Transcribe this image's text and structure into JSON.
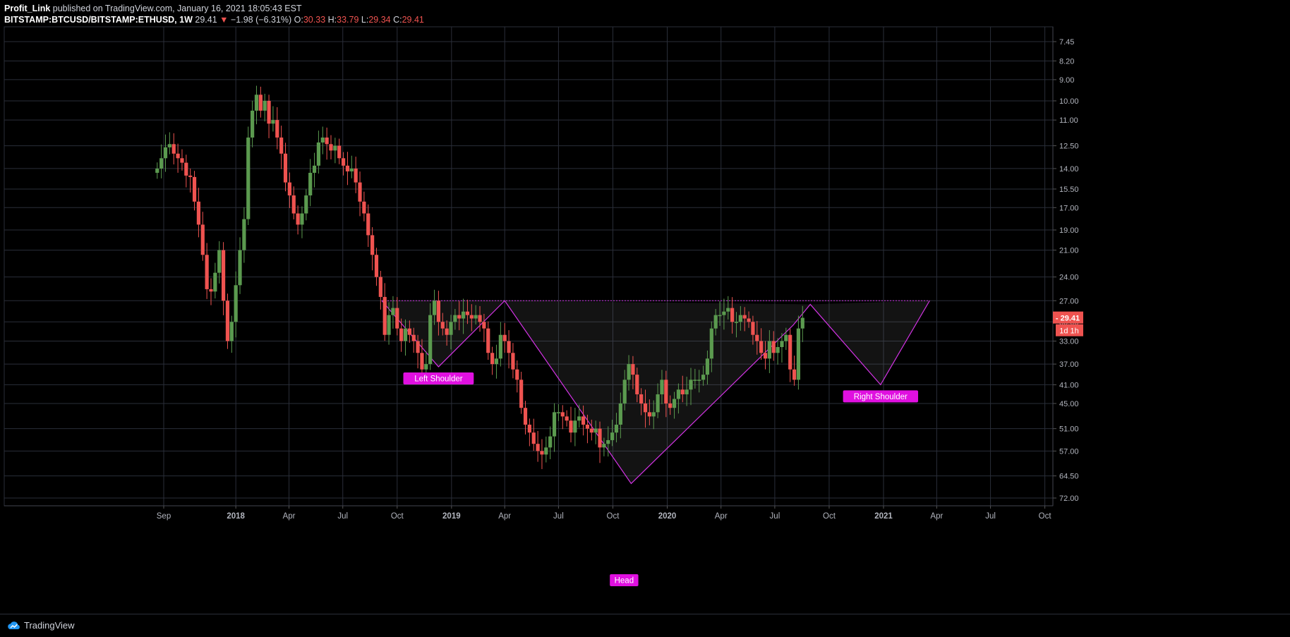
{
  "header": {
    "author": "Profit_Link",
    "published": "published on TradingView.com, January 16, 2021 18:05:43 EST",
    "symbol": "BITSTAMP:BTCUSD/BITSTAMP:ETHUSD, 1W",
    "price": "29.41",
    "change_arrow": "▼",
    "change": "−1.98 (−6.31%)",
    "o_label": "O:",
    "o_value": "30.33",
    "h_label": "H:",
    "h_value": "33.79",
    "l_label": "L:",
    "l_value": "29.34",
    "c_label": "C:",
    "c_value": "29.41"
  },
  "footer": {
    "brand": "TradingView",
    "logo_icon": "tradingview-cloud-icon"
  },
  "colors": {
    "up": "#5b9a4f",
    "down": "#ef5350",
    "pattern": "#d433e6",
    "label_bg": "#e010e0",
    "grid": "#2a2e39"
  },
  "chart_data": {
    "type": "candlestick",
    "title": "",
    "interval": "1W",
    "y_scale": "log (inverted)",
    "y_ticks": [
      "7.45",
      "8.20",
      "9.00",
      "10.00",
      "11.00",
      "12.50",
      "14.00",
      "15.50",
      "17.00",
      "19.00",
      "21.00",
      "24.00",
      "27.00",
      "30.00",
      "33.00",
      "37.00",
      "41.00",
      "45.00",
      "51.00",
      "57.00",
      "64.50",
      "72.00"
    ],
    "x_ticks": [
      "Sep",
      "2018",
      "Apr",
      "Jul",
      "Oct",
      "2019",
      "Apr",
      "Jul",
      "Oct",
      "2020",
      "Apr",
      "Jul",
      "Oct",
      "2021",
      "Apr",
      "Jul",
      "Oct"
    ],
    "x_tick_dates": [
      "2017-09-01",
      "2018-01-01",
      "2018-04-01",
      "2018-07-01",
      "2018-10-01",
      "2019-01-01",
      "2019-04-01",
      "2019-07-01",
      "2019-10-01",
      "2020-01-01",
      "2020-04-01",
      "2020-07-01",
      "2020-10-01",
      "2021-01-01",
      "2021-04-01",
      "2021-07-01",
      "2021-10-01"
    ],
    "last_price_label": "29.41",
    "countdown_label": "1d 1h",
    "grid": true,
    "annotations": {
      "neckline": 27.0,
      "labels": [
        {
          "text": "Left Shoulder",
          "date": "2018-12-10",
          "value": 37.5
        },
        {
          "text": "Head",
          "date": "2019-10-20",
          "value": 70.5
        },
        {
          "text": "Right Shoulder",
          "date": "2020-12-27",
          "value": 41.0
        }
      ],
      "pattern_points": [
        {
          "date": "2018-09-05",
          "value": 27.0
        },
        {
          "date": "2018-12-10",
          "value": 37.5
        },
        {
          "date": "2019-04-01",
          "value": 27.0
        },
        {
          "date": "2019-11-01",
          "value": 67.0
        },
        {
          "date": "2020-08-01",
          "value": 30.5
        },
        {
          "date": "2020-08-30",
          "value": 27.5
        },
        {
          "date": "2020-12-27",
          "value": 41.0
        },
        {
          "date": "2021-03-20",
          "value": 27.0
        }
      ]
    },
    "candles_close": [
      14.0,
      13.3,
      12.6,
      12.4,
      13.0,
      13.3,
      13.6,
      14.5,
      14.6,
      16.5,
      18.5,
      21.5,
      25.5,
      25.8,
      23.5,
      21.0,
      27.0,
      33.0,
      30.0,
      25.0,
      21.0,
      18.0,
      12.0,
      10.5,
      9.7,
      10.5,
      10.0,
      11.2,
      11.0,
      12.0,
      13.0,
      15.0,
      16.0,
      17.5,
      18.5,
      17.5,
      16.0,
      14.3,
      13.8,
      12.3,
      12.0,
      12.4,
      12.8,
      12.5,
      13.3,
      13.8,
      14.2,
      14.0,
      15.0,
      16.5,
      17.5,
      19.5,
      21.5,
      24.0,
      26.5,
      32.0,
      29.0,
      28.0,
      31.0,
      33.0,
      31.0,
      32.0,
      33.0,
      35.0,
      38.0,
      37.0,
      29.0,
      27.0,
      30.0,
      31.0,
      32.0,
      30.0,
      29.0,
      29.5,
      28.5,
      29.0,
      29.5,
      29.0,
      30.0,
      31.0,
      35.0,
      37.0,
      36.0,
      32.0,
      33.0,
      35.0,
      38.0,
      40.0,
      46.0,
      50.0,
      52.0,
      55.0,
      57.0,
      58.0,
      56.0,
      53.0,
      47.0,
      47.0,
      48.0,
      49.0,
      52.0,
      49.0,
      48.0,
      50.0,
      51.0,
      52.0,
      51.0,
      56.0,
      55.0,
      54.0,
      52.0,
      50.0,
      45.0,
      40.0,
      37.0,
      39.0,
      43.0,
      45.0,
      47.0,
      48.0,
      47.0,
      43.0,
      40.0,
      45.0,
      46.0,
      44.0,
      42.0,
      43.0,
      42.0,
      40.0,
      40.0,
      40.0,
      39.0,
      36.0,
      31.0,
      29.0,
      29.0,
      28.5,
      28.0,
      30.0,
      30.0,
      29.0,
      29.5,
      30.0,
      32.0,
      33.0,
      35.0,
      36.0,
      33.0,
      35.0,
      34.0,
      33.0,
      32.0,
      38.0,
      40.0,
      31.0,
      29.4
    ]
  }
}
